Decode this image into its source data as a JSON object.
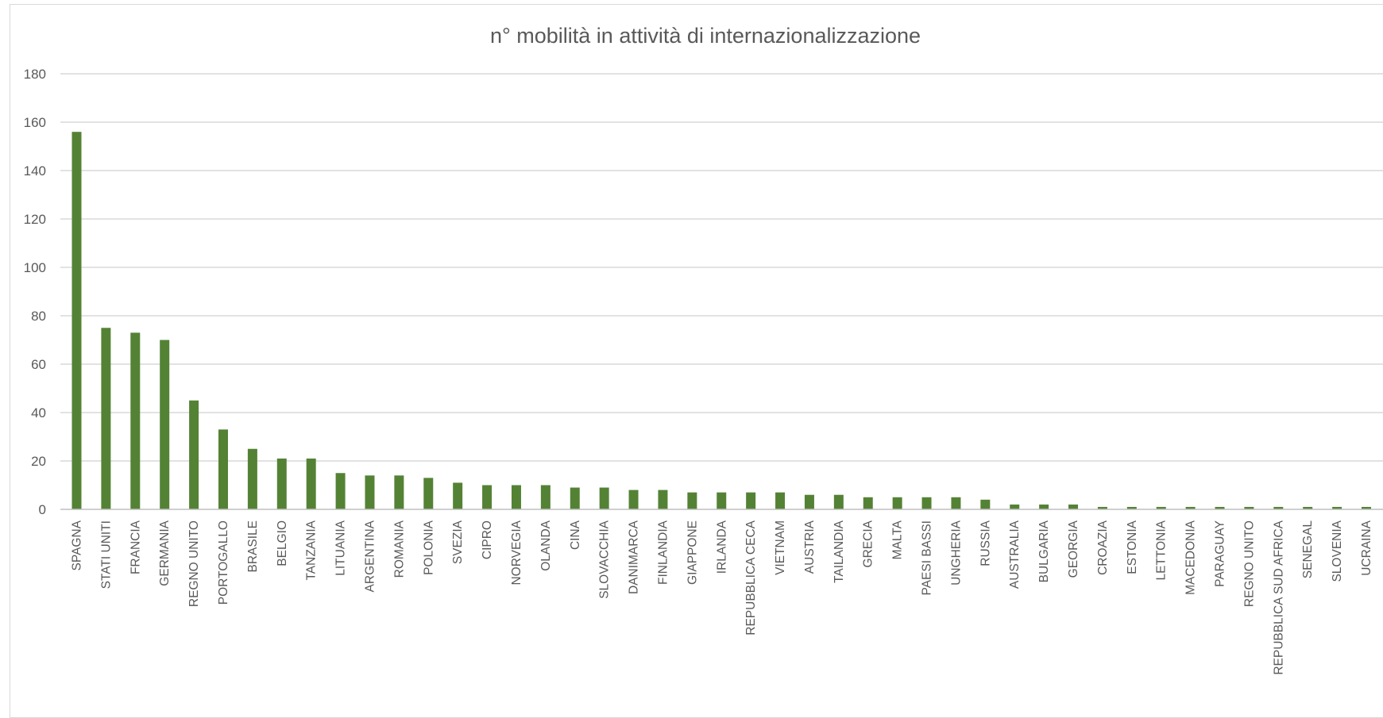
{
  "chart_data": {
    "type": "bar",
    "title": "n° mobilità in attività di internazionalizzazione",
    "xlabel": "",
    "ylabel": "",
    "ylim": [
      0,
      180
    ],
    "yticks": [
      0,
      20,
      40,
      60,
      80,
      100,
      120,
      140,
      160,
      180
    ],
    "grid": true,
    "legend": "none",
    "bar_color": "#548235",
    "categories": [
      "SPAGNA",
      "STATI UNITI",
      "FRANCIA",
      "GERMANIA",
      "REGNO UNITO",
      "PORTOGALLO",
      "BRASILE",
      "BELGIO",
      "TANZANIA",
      "LITUANIA",
      "ARGENTINA",
      "ROMANIA",
      "POLONIA",
      "SVEZIA",
      "CIPRO",
      "NORVEGIA",
      "OLANDA",
      "CINA",
      "SLOVACCHIA",
      "DANIMARCA",
      "FINLANDIA",
      "GIAPPONE",
      "IRLANDA",
      "REPUBBLICA CECA",
      "VIETNAM",
      "AUSTRIA",
      "TAILANDIA",
      "GRECIA",
      "MALTA",
      "PAESI BASSI",
      "UNGHERIA",
      "RUSSIA",
      "AUSTRALIA",
      "BULGARIA",
      "GEORGIA",
      "CROAZIA",
      "ESTONIA",
      "LETTONIA",
      "MACEDONIA",
      "PARAGUAY",
      "REGNO UNITO",
      "REPUBBLICA SUD AFRICA",
      "SENEGAL",
      "SLOVENIA",
      "UCRAINA"
    ],
    "values": [
      156,
      75,
      73,
      70,
      45,
      33,
      25,
      21,
      21,
      15,
      14,
      14,
      13,
      11,
      10,
      10,
      10,
      9,
      9,
      8,
      8,
      7,
      7,
      7,
      7,
      6,
      6,
      5,
      5,
      5,
      5,
      4,
      2,
      2,
      2,
      1,
      1,
      1,
      1,
      1,
      1,
      1,
      1,
      1,
      1
    ]
  }
}
